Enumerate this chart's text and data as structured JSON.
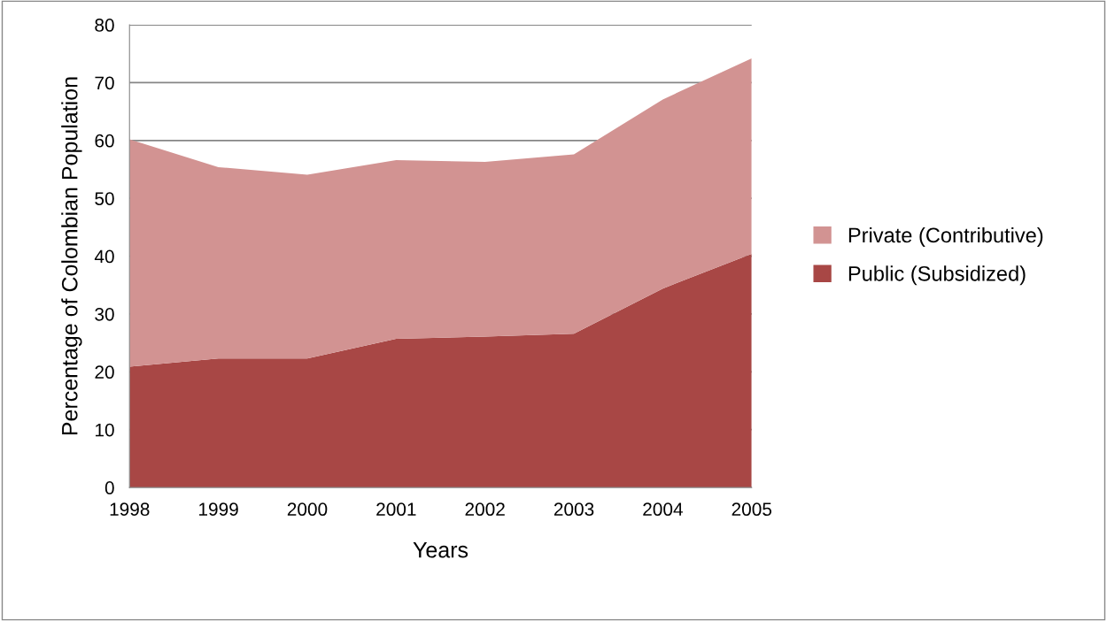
{
  "chart_data": {
    "type": "area",
    "stacked": true,
    "xlabel": "Years",
    "ylabel": "Percentage of Colombian Population",
    "categories": [
      "1998",
      "1999",
      "2000",
      "2001",
      "2002",
      "2003",
      "2004",
      "2005"
    ],
    "series": [
      {
        "name": "Public (Subsidized)",
        "color": "#a84745",
        "values": [
          20.9,
          22.3,
          22.3,
          25.7,
          26.1,
          26.6,
          34.4,
          40.4
        ]
      },
      {
        "name": "Private (Contributive)",
        "color": "#d29392",
        "values": [
          39.3,
          33.1,
          31.8,
          30.9,
          30.2,
          31.0,
          32.7,
          33.8
        ]
      }
    ],
    "ylim": [
      0,
      80
    ],
    "yticks": [
      0,
      10,
      20,
      30,
      40,
      50,
      60,
      70,
      80
    ],
    "grid": "y",
    "legend": "right"
  }
}
